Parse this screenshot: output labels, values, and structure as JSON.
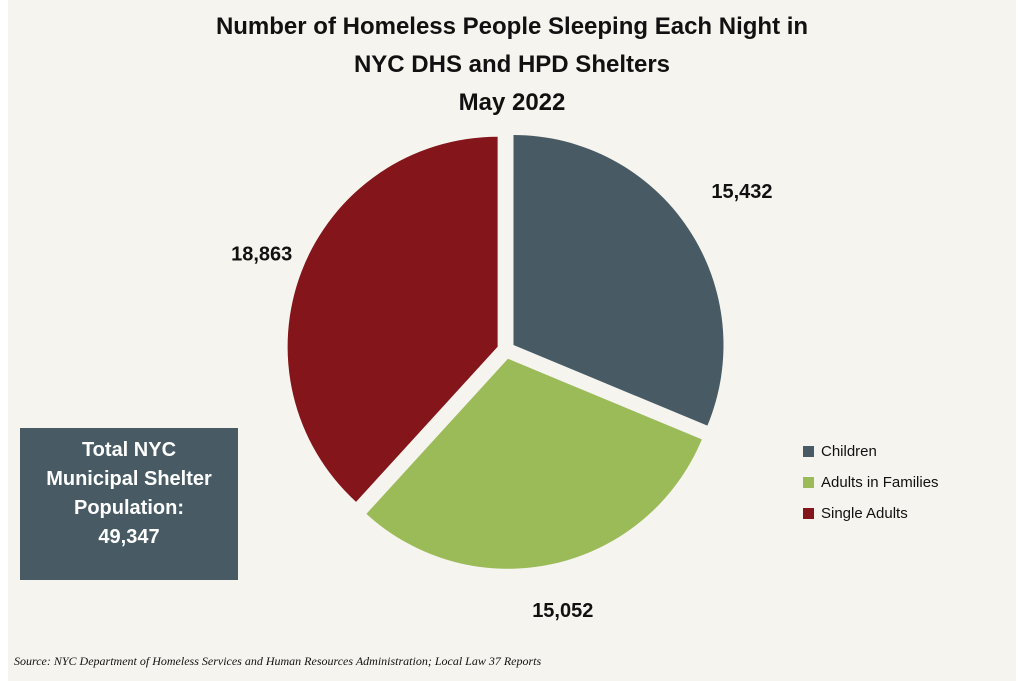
{
  "chart_data": {
    "type": "pie",
    "title_lines": [
      "Number of Homeless People Sleeping Each Night in",
      "NYC DHS and HPD Shelters",
      "May 2022"
    ],
    "slices": [
      {
        "label": "Children",
        "value": 15432,
        "display": "15,432",
        "color": "#485b64"
      },
      {
        "label": "Adults in Families",
        "value": 15052,
        "display": "15,052",
        "color": "#9bbb59"
      },
      {
        "label": "Single Adults",
        "value": 18863,
        "display": "18,863",
        "color": "#84151a"
      }
    ],
    "legend_placement": "right"
  },
  "total_box": {
    "lines": [
      "Total NYC",
      "Municipal Shelter",
      "Population:",
      "49,347"
    ],
    "color": "#485b64"
  },
  "source_text": "Source:  NYC Department of Homeless Services and Human Resources Administration; Local Law 37 Reports",
  "colors": {
    "background": "#f6f4ef",
    "text": "#111111"
  }
}
